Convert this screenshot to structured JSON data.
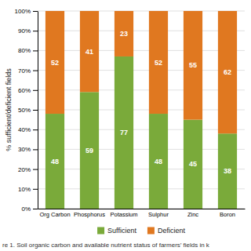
{
  "chart_data": {
    "type": "bar",
    "stacked": true,
    "categories": [
      "Org Carbon",
      "Phosphorus",
      "Potassium",
      "Sulphur",
      "Zinc",
      "Boron"
    ],
    "series": [
      {
        "name": "Sufficient",
        "color": "#7aaa3a",
        "values": [
          48,
          59,
          77,
          48,
          45,
          38
        ]
      },
      {
        "name": "Deficient",
        "color": "#e07820",
        "values": [
          52,
          41,
          23,
          52,
          55,
          62
        ]
      }
    ],
    "ylabel": "% sufficient/deficient  fields",
    "ylim": [
      0,
      100
    ],
    "yticks": [
      {
        "value": 0,
        "label": "0%"
      },
      {
        "value": 10,
        "label": "10%"
      },
      {
        "value": 20,
        "label": "20%"
      },
      {
        "value": 30,
        "label": "30%"
      },
      {
        "value": 40,
        "label": "40%"
      },
      {
        "value": 50,
        "label": "50%"
      },
      {
        "value": 60,
        "label": "60%"
      },
      {
        "value": 70,
        "label": "70%"
      },
      {
        "value": 80,
        "label": "80%"
      },
      {
        "value": 90,
        "label": "90%"
      },
      {
        "value": 100,
        "label": "100%"
      }
    ],
    "grid": true,
    "data_labels": true,
    "legend": "bottom",
    "caption": "re 1. Soil organic carbon and available nutrient status of farmers’ fields in k"
  }
}
